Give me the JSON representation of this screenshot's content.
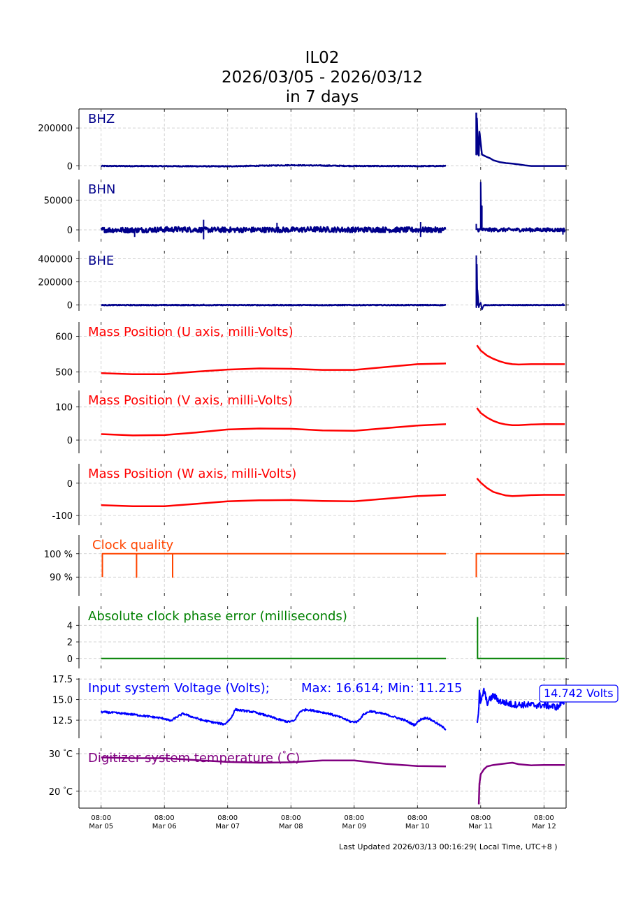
{
  "header": {
    "station": "IL02",
    "range": "2026/03/05 - 2026/03/12",
    "span": "in 7 days"
  },
  "footer": {
    "updated": "Last Updated 2026/03/13 00:16:29( Local Time, UTC+8 )"
  },
  "chart_data": {
    "type": "line",
    "x_axis": {
      "ticks": [
        {
          "time": "08:00",
          "date": "Mar 05",
          "day": 0
        },
        {
          "time": "08:00",
          "date": "Mar 06",
          "day": 1
        },
        {
          "time": "08:00",
          "date": "Mar 07",
          "day": 2
        },
        {
          "time": "08:00",
          "date": "Mar 08",
          "day": 3
        },
        {
          "time": "08:00",
          "date": "Mar 09",
          "day": 4
        },
        {
          "time": "08:00",
          "date": "Mar 10",
          "day": 5
        },
        {
          "time": "08:00",
          "date": "Mar 11",
          "day": 6
        },
        {
          "time": "08:00",
          "date": "Mar 12",
          "day": 7
        }
      ],
      "xlim_days": [
        -0.35,
        7.35
      ],
      "grid": true
    },
    "panels": [
      {
        "id": "bhz",
        "label": "BHZ",
        "color": "#00008b",
        "ylim": [
          -20000,
          300000
        ],
        "yticks": [
          {
            "v": 0,
            "t": "0"
          },
          {
            "v": 200000,
            "t": "200000"
          }
        ],
        "series": [
          {
            "kind": "noisy",
            "x": [
              0,
              1,
              2,
              3,
              4,
              5,
              5.45
            ],
            "y": [
              0,
              -1000,
              -2000,
              4000,
              0,
              -1000,
              0
            ],
            "amp": 2200,
            "w": 2.5
          },
          {
            "kind": "line",
            "x": [
              5.93,
              5.93,
              5.94,
              5.95,
              5.95,
              5.97,
              5.98,
              6.02,
              6.08,
              6.15,
              6.2,
              6.3,
              6.4,
              6.5,
              6.6,
              6.7,
              6.8,
              6.9,
              7.0,
              7.1,
              7.3,
              7.4
            ],
            "y": [
              280000,
              60000,
              250000,
              150000,
              70000,
              55000,
              180000,
              60000,
              50000,
              40000,
              30000,
              20000,
              15000,
              12000,
              8000,
              3000,
              0,
              0,
              0,
              0,
              0,
              0
            ],
            "w": 2.5
          }
        ],
        "spikes": [
          {
            "x": 0.53,
            "y": 2000
          },
          {
            "x": 2.55,
            "y": -3000
          },
          {
            "x": 4.5,
            "y": 2500
          },
          {
            "x": 7.3,
            "y": 3000
          }
        ]
      },
      {
        "id": "bhn",
        "label": "BHN",
        "color": "#00008b",
        "ylim": [
          -20000,
          85000
        ],
        "yticks": [
          {
            "v": 0,
            "t": "0"
          },
          {
            "v": 50000,
            "t": "50000"
          }
        ],
        "series": [
          {
            "kind": "noisy",
            "x": [
              0,
              0.5,
              1,
              1.3,
              1.6,
              2,
              3,
              3.4,
              4,
              4.3,
              4.6,
              5,
              5.45
            ],
            "y": [
              0,
              -500,
              500,
              800,
              0,
              0,
              0,
              800,
              0,
              500,
              0,
              0,
              0
            ],
            "amp": 4500,
            "w": 2.5
          },
          {
            "kind": "noisy",
            "x": [
              5.94,
              6.2,
              6.6,
              7.0,
              7.33
            ],
            "y": [
              0,
              0,
              0,
              0,
              0
            ],
            "amp": 3000,
            "w": 2.5
          },
          {
            "kind": "line",
            "x": [
              6.0,
              6.0,
              6.01,
              6.02,
              6.02
            ],
            "y": [
              0,
              80000,
              0,
              40000,
              0
            ],
            "w": 2
          }
        ],
        "spikes": [
          {
            "x": 0.53,
            "y": -12000
          },
          {
            "x": 1.62,
            "y": -16000
          },
          {
            "x": 1.62,
            "y": 17000
          },
          {
            "x": 2.78,
            "y": 12000
          },
          {
            "x": 5.05,
            "y": 13000
          },
          {
            "x": 5.05,
            "y": -12000
          },
          {
            "x": 5.93,
            "y": 10000
          },
          {
            "x": 7.3,
            "y": -8000
          }
        ]
      },
      {
        "id": "bhe",
        "label": "BHE",
        "color": "#00008b",
        "ylim": [
          -50000,
          470000
        ],
        "yticks": [
          {
            "v": 0,
            "t": "0"
          },
          {
            "v": 200000,
            "t": "200000"
          },
          {
            "v": 400000,
            "t": "400000"
          }
        ],
        "series": [
          {
            "kind": "noisy",
            "x": [
              0,
              1,
              1.3,
              1.6,
              2,
              3,
              4,
              4.3,
              5,
              5.45
            ],
            "y": [
              0,
              0,
              0,
              0,
              0,
              0,
              0,
              0,
              0,
              0
            ],
            "amp": 3500,
            "w": 2.5
          },
          {
            "kind": "line",
            "x": [
              5.93,
              5.93,
              5.94,
              5.95,
              5.95,
              5.97,
              5.98,
              6.0,
              6.02,
              6.05
            ],
            "y": [
              430000,
              -20000,
              350000,
              0,
              130000,
              -20000,
              0,
              20000,
              -40000,
              0
            ],
            "w": 2
          },
          {
            "kind": "noisy",
            "x": [
              6.05,
              6.5,
              7.0,
              7.33
            ],
            "y": [
              0,
              0,
              0,
              0
            ],
            "amp": 2500,
            "w": 2.5
          }
        ],
        "spikes": [
          {
            "x": 0.53,
            "y": 8000
          },
          {
            "x": 1.62,
            "y": 12000
          },
          {
            "x": 2.78,
            "y": 9000
          },
          {
            "x": 3.6,
            "y": -8000
          },
          {
            "x": 5.05,
            "y": 10000
          },
          {
            "x": 7.3,
            "y": 15000
          }
        ]
      },
      {
        "id": "massu",
        "label": "Mass Position (U axis, milli-Volts)",
        "color": "#ff0000",
        "ylim": [
          470,
          640
        ],
        "yticks": [
          {
            "v": 500,
            "t": "500"
          },
          {
            "v": 600,
            "t": "600"
          }
        ],
        "series": [
          {
            "kind": "line",
            "x": [
              0,
              0.5,
              1,
              1.5,
              2,
              2.5,
              3,
              3.5,
              4,
              4.5,
              5,
              5.45
            ],
            "y": [
              497,
              494,
              494,
              501,
              507,
              510,
              509,
              506,
              506,
              514,
              522,
              524
            ],
            "w": 2.5
          },
          {
            "kind": "line",
            "x": [
              5.94,
              6.0,
              6.1,
              6.2,
              6.3,
              6.4,
              6.5,
              6.6,
              6.8,
              7.0,
              7.33
            ],
            "y": [
              575,
              560,
              546,
              537,
              530,
              525,
              522,
              521,
              522,
              522,
              522
            ],
            "w": 2.5
          }
        ]
      },
      {
        "id": "massv",
        "label": "Mass Position (V axis, milli-Volts)",
        "color": "#ff0000",
        "ylim": [
          -40,
          150
        ],
        "yticks": [
          {
            "v": 0,
            "t": "0"
          },
          {
            "v": 100,
            "t": "100"
          }
        ],
        "series": [
          {
            "kind": "line",
            "x": [
              0,
              0.5,
              1,
              1.5,
              2,
              2.5,
              3,
              3.5,
              4,
              4.5,
              5,
              5.45
            ],
            "y": [
              18,
              14,
              15,
              23,
              32,
              35,
              34,
              29,
              28,
              36,
              44,
              48
            ],
            "w": 2.5
          },
          {
            "kind": "line",
            "x": [
              5.94,
              6.0,
              6.1,
              6.2,
              6.3,
              6.4,
              6.5,
              6.6,
              6.8,
              7.0,
              7.33
            ],
            "y": [
              97,
              82,
              68,
              58,
              51,
              47,
              45,
              45,
              47,
              48,
              48
            ],
            "w": 2.5
          }
        ]
      },
      {
        "id": "massw",
        "label": "Mass Position (W axis, milli-Volts)",
        "color": "#ff0000",
        "ylim": [
          -130,
          60
        ],
        "yticks": [
          {
            "v": -100,
            "t": "-100"
          },
          {
            "v": 0,
            "t": "0"
          }
        ],
        "series": [
          {
            "kind": "line",
            "x": [
              0,
              0.5,
              1,
              1.5,
              2,
              2.5,
              3,
              3.5,
              4,
              4.5,
              5,
              5.45
            ],
            "y": [
              -68,
              -71,
              -71,
              -64,
              -56,
              -53,
              -52,
              -55,
              -56,
              -48,
              -40,
              -36
            ],
            "w": 2.5
          },
          {
            "kind": "line",
            "x": [
              5.94,
              6.0,
              6.1,
              6.2,
              6.3,
              6.4,
              6.5,
              6.6,
              6.8,
              7.0,
              7.33
            ],
            "y": [
              15,
              2,
              -15,
              -27,
              -33,
              -38,
              -40,
              -39,
              -37,
              -36,
              -36
            ],
            "w": 2.5
          }
        ]
      },
      {
        "id": "clock",
        "label": "Clock quality",
        "color": "#ff4500",
        "ylim": [
          82,
          108
        ],
        "yticks": [
          {
            "v": 90,
            "t": "90 %"
          },
          {
            "v": 100,
            "t": "100 %"
          }
        ],
        "series": [
          {
            "kind": "line",
            "x": [
              0.02,
              0.02,
              0.02,
              0.56,
              0.56,
              0.56,
              1.13,
              1.13,
              1.13,
              5.45
            ],
            "y": [
              90,
              100,
              100,
              100,
              90,
              100,
              100,
              90,
              100,
              100
            ],
            "w": 2
          },
          {
            "kind": "line",
            "x": [
              5.93,
              5.93,
              7.33
            ],
            "y": [
              90,
              100,
              100
            ],
            "w": 2
          }
        ]
      },
      {
        "id": "phase",
        "label": "Absolute clock phase error (milliseconds)",
        "color": "#008000",
        "ylim": [
          -1.2,
          6.3
        ],
        "yticks": [
          {
            "v": 0,
            "t": "0"
          },
          {
            "v": 2,
            "t": "2"
          },
          {
            "v": 4,
            "t": "4"
          }
        ],
        "series": [
          {
            "kind": "line",
            "x": [
              0,
              5.45
            ],
            "y": [
              0,
              0
            ],
            "w": 2
          },
          {
            "kind": "line",
            "x": [
              5.95,
              5.95,
              5.96,
              7.33
            ],
            "y": [
              5.0,
              0,
              0,
              0
            ],
            "w": 2
          }
        ]
      },
      {
        "id": "volt",
        "label": "Input system Voltage (Volts);",
        "stats": "Max: 16.614; Min: 11.215",
        "color": "#0000ff",
        "ylim": [
          10.3,
          17.6
        ],
        "yticks": [
          {
            "v": 12.5,
            "t": "12.5"
          },
          {
            "v": 15.0,
            "t": "15.0"
          },
          {
            "v": 17.5,
            "t": "17.5"
          }
        ],
        "callout": "14.742 Volts",
        "series": [
          {
            "kind": "noisy",
            "x": [
              0,
              0.2,
              0.5,
              0.8,
              1.0,
              1.1,
              1.2,
              1.3,
              1.4,
              1.6,
              1.8,
              1.95,
              2.05,
              2.12,
              2.2,
              2.4,
              2.6,
              2.8,
              2.95,
              3.05,
              3.15,
              3.25,
              3.4,
              3.6,
              3.8,
              3.95,
              4.05,
              4.15,
              4.25,
              4.5,
              4.8,
              4.95,
              5.05,
              5.15,
              5.25,
              5.45
            ],
            "y": [
              13.5,
              13.4,
              13.2,
              12.9,
              12.7,
              12.4,
              12.9,
              13.3,
              13.0,
              12.5,
              12.2,
              12.0,
              12.7,
              13.8,
              13.7,
              13.5,
              13.1,
              12.6,
              12.3,
              12.4,
              13.6,
              13.8,
              13.6,
              13.3,
              12.8,
              12.3,
              12.3,
              13.2,
              13.6,
              13.2,
              12.5,
              11.9,
              12.6,
              12.8,
              12.4,
              11.4
            ],
            "amp": 0.12,
            "w": 2
          },
          {
            "kind": "noisy",
            "x": [
              5.94,
              5.95,
              5.97,
              5.98,
              6.0,
              6.05,
              6.1,
              6.2,
              6.3,
              6.5,
              7.0,
              7.2,
              7.24,
              7.27,
              7.32
            ],
            "y": [
              12.3,
              12.6,
              13.8,
              16.0,
              14.4,
              16.2,
              14.6,
              15.5,
              14.8,
              14.4,
              14.3,
              14.1,
              14.1,
              14.7,
              14.7
            ],
            "amp": 0.4,
            "w": 2
          }
        ]
      },
      {
        "id": "temp",
        "label": "Digitizer system temperature (",
        "label_deg": "°",
        "label_end": "C)",
        "color": "#800080",
        "ylim": [
          15.5,
          31.5
        ],
        "yticks": [
          {
            "v": 20,
            "t": "20"
          },
          {
            "v": 30,
            "t": "30"
          }
        ],
        "ytick_unit": "C",
        "series": [
          {
            "kind": "line",
            "x": [
              0,
              0.5,
              1,
              1.5,
              2,
              2.5,
              3,
              3.5,
              4,
              4.5,
              5,
              5.45
            ],
            "y": [
              29.0,
              28.8,
              28.8,
              28.3,
              27.8,
              27.6,
              27.7,
              28.2,
              28.2,
              27.3,
              26.7,
              26.6
            ],
            "w": 2.5
          },
          {
            "kind": "line",
            "x": [
              5.97,
              5.98,
              6.0,
              6.05,
              6.1,
              6.2,
              6.3,
              6.4,
              6.5,
              6.6,
              6.8,
              7.0,
              7.33
            ],
            "y": [
              16.5,
              22.0,
              24.5,
              25.8,
              26.6,
              27.0,
              27.2,
              27.4,
              27.6,
              27.2,
              26.9,
              27.0,
              27.0
            ],
            "w": 2.5
          }
        ]
      }
    ]
  }
}
